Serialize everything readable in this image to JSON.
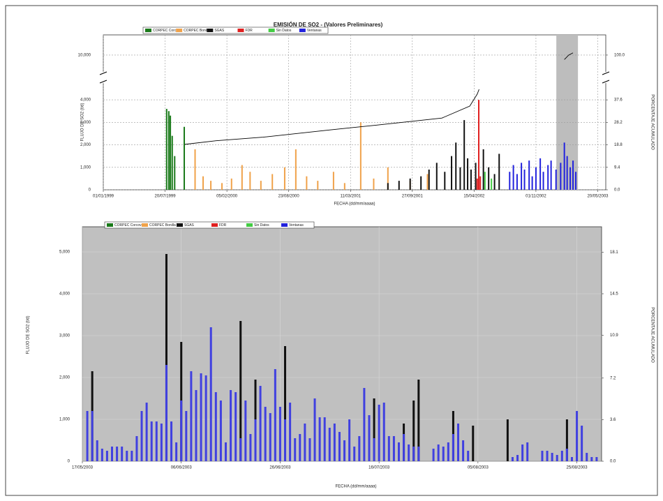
{
  "chart_data": [
    {
      "type": "bar",
      "title": "EMISIÓN DE SO2 - (Valores Preliminares)",
      "x_label": "FECHA (dd/mm/aaaa)",
      "y_label": "FLUJO DE SO2 (t/d)",
      "y2_label": "PORCENTAJE ACUMULADO",
      "xlim": [
        "01/01/1999",
        "15/06/2003"
      ],
      "xticks": [
        "01/01/1999",
        "20/07/1999",
        "05/02/2000",
        "23/08/2000",
        "11/03/2001",
        "27/09/2001",
        "15/04/2002",
        "01/11/2002",
        "20/05/2003"
      ],
      "ylim": [
        0,
        10900
      ],
      "ybreak": {
        "from": 4500,
        "to": 9500
      },
      "yticks": [
        0,
        {
          "value": 1000,
          "label": "1,000"
        },
        {
          "value": 2000,
          "label": "2,000"
        },
        {
          "value": 3000,
          "label": "3,000"
        },
        {
          "value": 4000,
          "label": "4,000"
        },
        {
          "value": 10000,
          "label": "10,000"
        }
      ],
      "y2lim": [
        0,
        109
      ],
      "y2break": {
        "from": 42.3,
        "to": 95
      },
      "y2ticks": [
        {
          "value": 0,
          "label": "0.0"
        },
        9.4,
        18.8,
        28.2,
        37.6,
        {
          "value": 100,
          "label": "100.0"
        }
      ],
      "grid": true,
      "shaded": [
        "06/01/2003",
        "17/03/2003"
      ],
      "series": [
        {
          "name": "CORPEC Corcova",
          "color": "#1a7a1a",
          "x": [
            "25/07/1999",
            "01/08/1999",
            "06/08/1999",
            "12/08/1999",
            "20/08/1999",
            "20/09/1999"
          ],
          "values": [
            3600,
            3500,
            3300,
            2400,
            1500,
            2800
          ]
        },
        {
          "name": "CORPEC Bonilla",
          "color": "#f0a24a",
          "x": [
            "25/10/1999",
            "20/11/1999",
            "15/12/1999",
            "20/01/2000",
            "20/02/2000",
            "25/03/2000",
            "20/04/2000",
            "25/05/2000",
            "01/07/2000",
            "10/08/2000",
            "15/09/2000",
            "20/10/2000",
            "25/11/2000",
            "15/01/2001",
            "20/02/2001",
            "13/04/2001",
            "25/05/2001",
            "10/07/2001",
            "20/09/2001",
            "15/11/2001"
          ],
          "values": [
            1800,
            600,
            400,
            300,
            500,
            1100,
            800,
            400,
            700,
            1000,
            1800,
            600,
            400,
            800,
            300,
            3000,
            500,
            1000,
            400,
            700
          ]
        },
        {
          "name": "SGAS",
          "color": "#111111",
          "x": [
            "10/07/2001",
            "15/08/2001",
            "20/09/2001",
            "25/10/2001",
            "20/11/2001",
            "15/12/2001",
            "10/01/2002",
            "01/02/2002",
            "15/02/2002",
            "01/03/2002",
            "14/03/2002",
            "25/03/2002",
            "05/04/2002",
            "20/04/2002",
            "15/05/2002",
            "01/06/2002",
            "20/06/2002",
            "05/07/2002"
          ],
          "values": [
            300,
            400,
            500,
            600,
            900,
            1200,
            800,
            1500,
            2100,
            1000,
            3100,
            1400,
            900,
            1200,
            1800,
            1000,
            700,
            1600
          ]
        },
        {
          "name": "FDR",
          "color": "#e02020",
          "x": [
            "25/04/2002",
            "30/04/2002",
            "05/05/2002"
          ],
          "values": [
            500,
            4000,
            600
          ]
        },
        {
          "name": "Sin Datos",
          "color": "#44cc44",
          "x": [
            "20/05/2002",
            "10/06/2002"
          ],
          "values": [
            800,
            500
          ]
        },
        {
          "name": "Ventanas",
          "color": "#2222dd",
          "x": [
            "08/08/2002",
            "20/08/2002",
            "01/09/2002",
            "15/09/2002",
            "25/09/2002",
            "10/10/2002",
            "20/10/2002",
            "01/11/2002",
            "15/11/2002",
            "25/11/2002",
            "10/12/2002",
            "20/12/2002",
            "05/01/2003",
            "20/01/2003",
            "01/02/2003",
            "10/02/2003",
            "20/02/2003",
            "01/03/2003",
            "10/03/2003"
          ],
          "values": [
            800,
            1100,
            700,
            1200,
            900,
            1300,
            600,
            1000,
            1400,
            800,
            1100,
            1300,
            900,
            1200,
            2100,
            1500,
            1000,
            1300,
            800
          ]
        },
        {
          "type": "line",
          "axis": "y2",
          "color": "#000000",
          "x": [
            "22/09/1999",
            "01/01/2000",
            "01/06/2000",
            "01/01/2001",
            "01/06/2001",
            "01/01/2002",
            "01/04/2002",
            "25/04/2002",
            "01/05/2002",
            null,
            "01/02/2003",
            "15/02/2003",
            "01/03/2003"
          ],
          "values": [
            19,
            20.5,
            22,
            25,
            27,
            30,
            35,
            40,
            42,
            null,
            98,
            100,
            101
          ]
        }
      ]
    },
    {
      "type": "bar",
      "x_label": "FECHA (dd/mm/aaaa)",
      "y_label": "FLUJO DE SO2 (t/d)",
      "y2_label": "PORCENTAJE ACUMULADO",
      "xlim": [
        "17/05/2003",
        "30/08/2003"
      ],
      "xticks": [
        "17/05/2003",
        "06/06/2003",
        "26/06/2003",
        "16/07/2003",
        "05/08/2003",
        "25/08/2003"
      ],
      "ylim": [
        0,
        5600
      ],
      "yticks": [
        0,
        {
          "value": 1000,
          "label": "1,000"
        },
        {
          "value": 2000,
          "label": "2,000"
        },
        {
          "value": 3000,
          "label": "3,000"
        },
        {
          "value": 4000,
          "label": "4,000"
        },
        {
          "value": 5000,
          "label": "5,000"
        }
      ],
      "y2lim": [
        0,
        20.3
      ],
      "y2ticks": [
        {
          "value": 0,
          "label": "0.0"
        },
        3.6,
        7.2,
        10.9,
        14.5,
        18.1
      ],
      "grid": true,
      "legend": [
        {
          "name": "CORPEC Corcova",
          "color": "#1a7a1a"
        },
        {
          "name": "CORPEC Bonilla",
          "color": "#f0a24a"
        },
        {
          "name": "SGAS",
          "color": "#111111"
        },
        {
          "name": "FDR",
          "color": "#e02020"
        },
        {
          "name": "Sin Datos",
          "color": "#44cc44"
        },
        {
          "name": "Ventanas",
          "color": "#2222dd"
        }
      ],
      "x": [
        "18/05/2003",
        "19/05/2003",
        "20/05/2003",
        "21/05/2003",
        "22/05/2003",
        "23/05/2003",
        "24/05/2003",
        "25/05/2003",
        "26/05/2003",
        "27/05/2003",
        "28/05/2003",
        "29/05/2003",
        "30/05/2003",
        "31/05/2003",
        "01/06/2003",
        "02/06/2003",
        "03/06/2003",
        "04/06/2003",
        "05/06/2003",
        "06/06/2003",
        "07/06/2003",
        "08/06/2003",
        "09/06/2003",
        "10/06/2003",
        "11/06/2003",
        "12/06/2003",
        "13/06/2003",
        "14/06/2003",
        "15/06/2003",
        "16/06/2003",
        "17/06/2003",
        "18/06/2003",
        "19/06/2003",
        "20/06/2003",
        "21/06/2003",
        "22/06/2003",
        "23/06/2003",
        "24/06/2003",
        "25/06/2003",
        "26/06/2003",
        "27/06/2003",
        "28/06/2003",
        "29/06/2003",
        "30/06/2003",
        "01/07/2003",
        "02/07/2003",
        "03/07/2003",
        "04/07/2003",
        "05/07/2003",
        "06/07/2003",
        "07/07/2003",
        "08/07/2003",
        "09/07/2003",
        "10/07/2003",
        "11/07/2003",
        "12/07/2003",
        "13/07/2003",
        "14/07/2003",
        "15/07/2003",
        "16/07/2003",
        "17/07/2003",
        "18/07/2003",
        "19/07/2003",
        "20/07/2003",
        "21/07/2003",
        "22/07/2003",
        "23/07/2003",
        "24/07/2003",
        "25/07/2003",
        "26/07/2003",
        "27/07/2003",
        "28/07/2003",
        "29/07/2003",
        "30/07/2003",
        "31/07/2003",
        "01/08/2003",
        "02/08/2003",
        "03/08/2003",
        "04/08/2003",
        "05/08/2003",
        "06/08/2003",
        "07/08/2003",
        "08/08/2003",
        "09/08/2003",
        "10/08/2003",
        "11/08/2003",
        "12/08/2003",
        "13/08/2003",
        "14/08/2003",
        "15/08/2003",
        "16/08/2003",
        "17/08/2003",
        "18/08/2003",
        "19/08/2003",
        "20/08/2003",
        "21/08/2003",
        "22/08/2003",
        "23/08/2003",
        "24/08/2003",
        "25/08/2003",
        "26/08/2003",
        "27/08/2003",
        "28/08/2003",
        "29/08/2003"
      ],
      "series": [
        {
          "color": "#111111",
          "values": [
            null,
            2150,
            null,
            null,
            null,
            null,
            null,
            null,
            null,
            null,
            null,
            null,
            null,
            null,
            null,
            null,
            4950,
            null,
            null,
            2850,
            null,
            null,
            null,
            null,
            null,
            null,
            null,
            null,
            null,
            null,
            null,
            3350,
            null,
            null,
            1950,
            null,
            null,
            null,
            null,
            null,
            2750,
            null,
            null,
            null,
            null,
            null,
            null,
            null,
            null,
            null,
            null,
            null,
            null,
            null,
            null,
            null,
            null,
            null,
            1500,
            null,
            null,
            null,
            null,
            null,
            900,
            null,
            1450,
            1950,
            null,
            null,
            null,
            null,
            null,
            null,
            1200,
            null,
            null,
            null,
            850,
            null,
            null,
            null,
            null,
            null,
            null,
            1000,
            null,
            null,
            null,
            null,
            null,
            null,
            null,
            null,
            null,
            null,
            null,
            1000,
            null,
            null,
            null,
            null,
            null,
            null
          ]
        },
        {
          "color": "#4040e0",
          "values": [
            1200,
            1200,
            500,
            300,
            250,
            350,
            350,
            350,
            250,
            250,
            600,
            1200,
            1400,
            950,
            950,
            900,
            2300,
            950,
            450,
            1450,
            1200,
            2150,
            1700,
            2100,
            2050,
            3200,
            1650,
            1450,
            450,
            1700,
            1650,
            550,
            1450,
            650,
            1000,
            1800,
            1300,
            1150,
            2200,
            1300,
            1000,
            1400,
            550,
            650,
            900,
            550,
            1500,
            1050,
            1050,
            800,
            900,
            700,
            500,
            1000,
            350,
            600,
            1750,
            1100,
            550,
            1350,
            1400,
            600,
            600,
            450,
            650,
            400,
            350,
            350,
            null,
            null,
            300,
            400,
            350,
            450,
            650,
            900,
            500,
            250,
            null,
            null,
            null,
            null,
            null,
            null,
            null,
            null,
            100,
            150,
            400,
            450,
            null,
            null,
            250,
            250,
            200,
            150,
            250,
            300,
            100,
            1200,
            850,
            200,
            100,
            100
          ]
        }
      ]
    }
  ]
}
